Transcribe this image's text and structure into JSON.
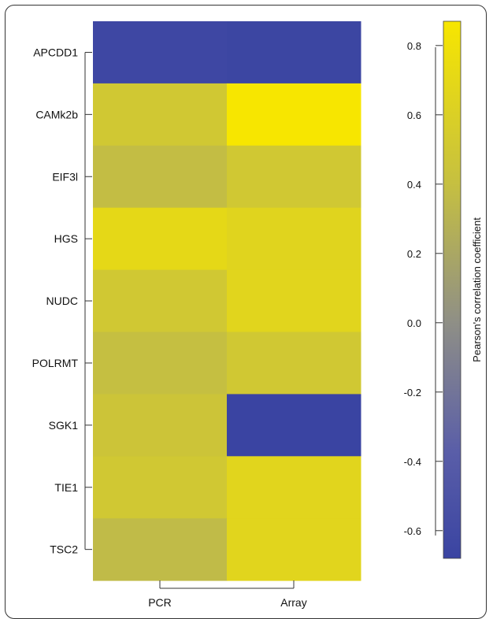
{
  "chart_data": {
    "type": "heatmap",
    "rows": [
      "APCDD1",
      "CAMk2b",
      "EIF3l",
      "HGS",
      "NUDC",
      "POLRMT",
      "SGK1",
      "TIE1",
      "TSC2"
    ],
    "columns": [
      "PCR",
      "Array"
    ],
    "values": [
      [
        -0.64,
        -0.66
      ],
      [
        0.5,
        0.87
      ],
      [
        0.38,
        0.5
      ],
      [
        0.7,
        0.65
      ],
      [
        0.5,
        0.66
      ],
      [
        0.4,
        0.5
      ],
      [
        0.46,
        -0.68
      ],
      [
        0.5,
        0.66
      ],
      [
        0.36,
        0.66
      ]
    ],
    "colorbar": {
      "label": "Pearson's correlation coefficient",
      "range": [
        -0.68,
        0.87
      ],
      "ticks": [
        0.8,
        0.6,
        0.4,
        0.2,
        0.0,
        -0.2,
        -0.4,
        -0.6
      ],
      "tick_labels": [
        "0.8",
        "0.6",
        "0.4",
        "0.2",
        "0.0",
        "-0.2",
        "-0.4",
        "-0.6"
      ],
      "colors": {
        "low": "#3a44a2",
        "mid": "#8f8f86",
        "high": "#f7e600"
      }
    }
  }
}
